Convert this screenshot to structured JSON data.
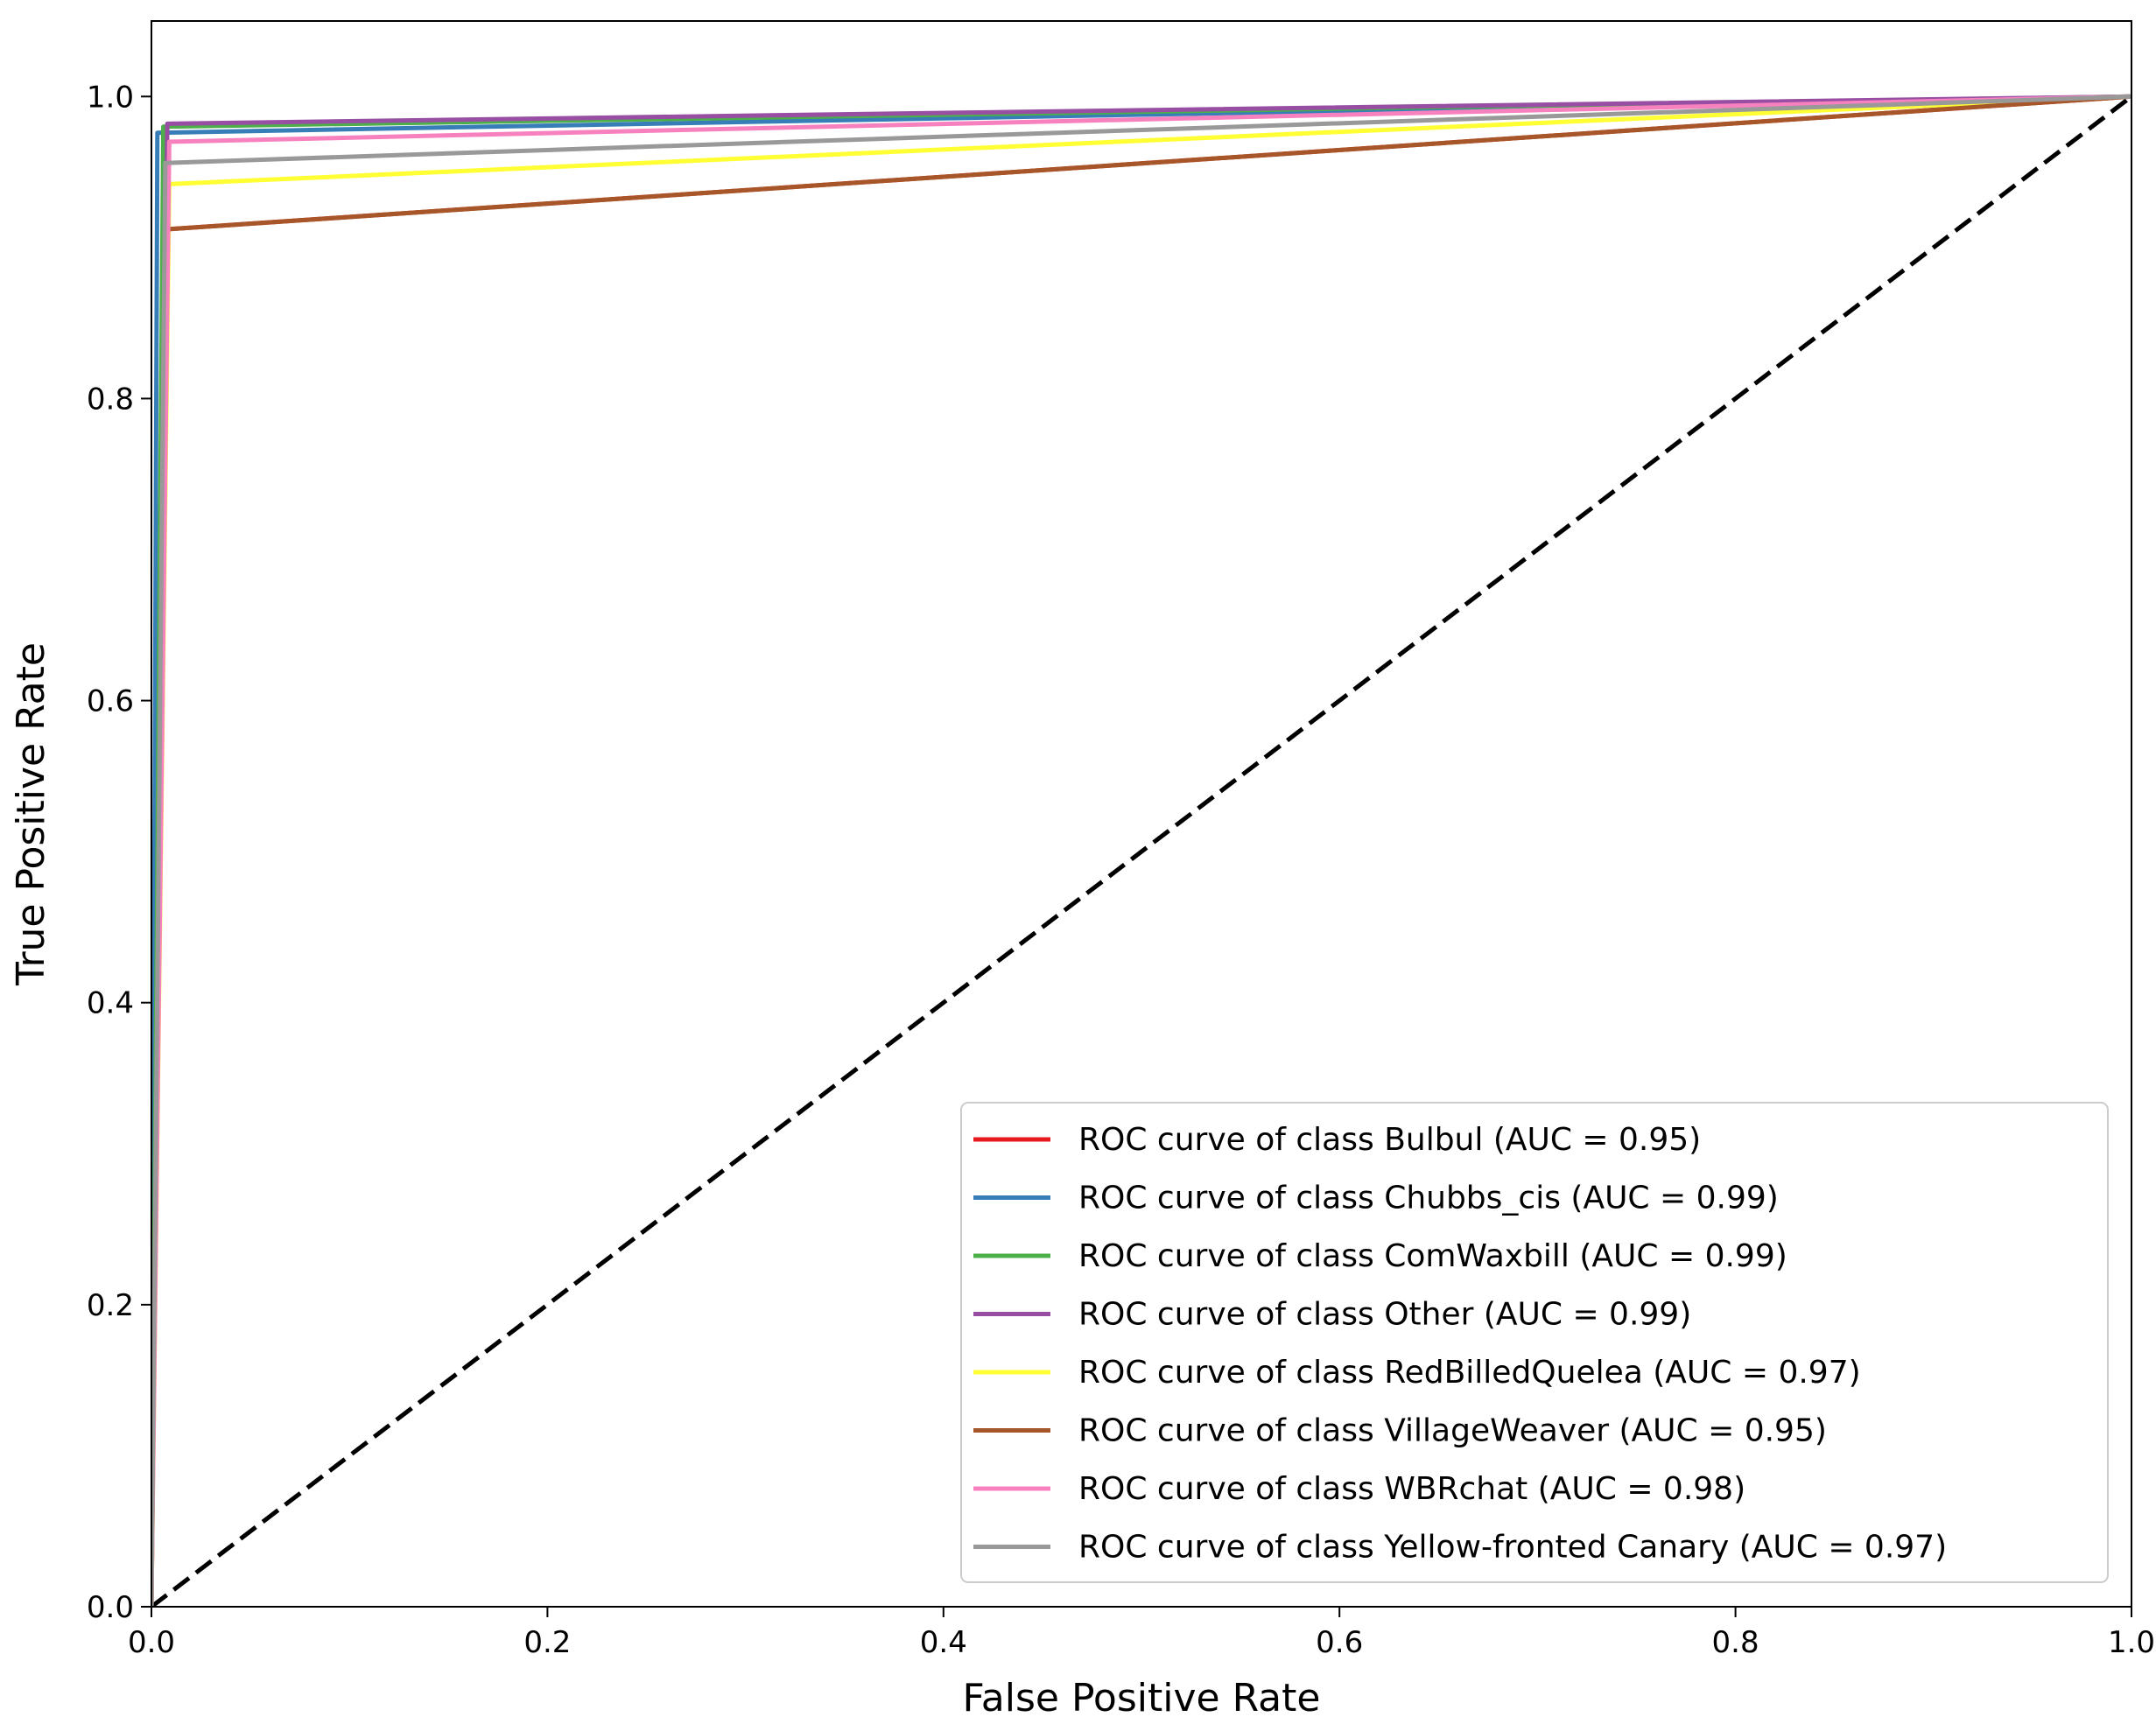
{
  "chart_data": {
    "type": "line",
    "title": "",
    "xlabel": "False Positive Rate",
    "ylabel": "True Positive Rate",
    "xlim": [
      0.0,
      1.0
    ],
    "ylim": [
      0.0,
      1.05
    ],
    "xticks": [
      "0.0",
      "0.2",
      "0.4",
      "0.6",
      "0.8",
      "1.0"
    ],
    "yticks": [
      "0.0",
      "0.2",
      "0.4",
      "0.6",
      "0.8",
      "1.0"
    ],
    "grid": false,
    "legend_position": "lower-right",
    "diagonal": {
      "x": [
        0,
        1
      ],
      "y": [
        0,
        1
      ],
      "color": "#000000",
      "style": "dashed"
    },
    "series": [
      {
        "name": "ROC curve of class Bulbul (AUC = 0.95)",
        "color": "#e41a1c",
        "x": [
          0,
          0.0068,
          1
        ],
        "y": [
          0,
          0.912,
          1
        ]
      },
      {
        "name": "ROC curve of class Chubbs_cis (AUC = 0.99)",
        "color": "#377eb8",
        "x": [
          0,
          0.003,
          1
        ],
        "y": [
          0,
          0.976,
          1
        ]
      },
      {
        "name": "ROC curve of class ComWaxbill (AUC = 0.99)",
        "color": "#4daf4a",
        "x": [
          0,
          0.006,
          1
        ],
        "y": [
          0,
          0.98,
          1
        ]
      },
      {
        "name": "ROC curve of class Other (AUC = 0.99)",
        "color": "#984ea3",
        "x": [
          0,
          0.008,
          1
        ],
        "y": [
          0,
          0.982,
          1
        ]
      },
      {
        "name": "ROC curve of class RedBilledQuelea (AUC = 0.97)",
        "color": "#ffff33",
        "x": [
          0,
          0.009,
          1
        ],
        "y": [
          0,
          0.942,
          1
        ]
      },
      {
        "name": "ROC curve of class VillageWeaver (AUC = 0.95)",
        "color": "#a65628",
        "x": [
          0,
          0.0072,
          1
        ],
        "y": [
          0,
          0.912,
          1
        ]
      },
      {
        "name": "ROC curve of class WBRchat (AUC = 0.98)",
        "color": "#f781bf",
        "x": [
          0,
          0.009,
          1
        ],
        "y": [
          0,
          0.97,
          1
        ]
      },
      {
        "name": "ROC curve of class Yellow-fronted Canary (AUC = 0.97)",
        "color": "#999999",
        "x": [
          0,
          0.007,
          1
        ],
        "y": [
          0,
          0.956,
          1
        ]
      }
    ]
  }
}
